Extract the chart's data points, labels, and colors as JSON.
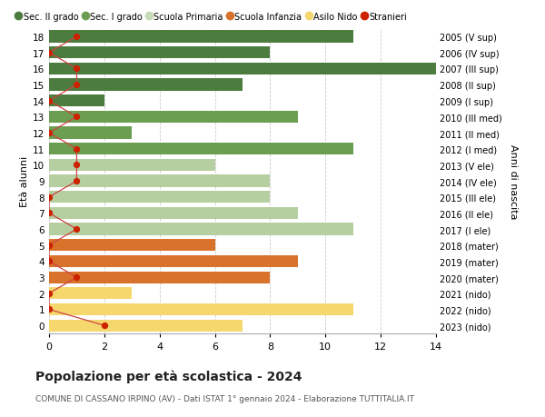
{
  "ages": [
    18,
    17,
    16,
    15,
    14,
    13,
    12,
    11,
    10,
    9,
    8,
    7,
    6,
    5,
    4,
    3,
    2,
    1,
    0
  ],
  "years": [
    "2005 (V sup)",
    "2006 (IV sup)",
    "2007 (III sup)",
    "2008 (II sup)",
    "2009 (I sup)",
    "2010 (III med)",
    "2011 (II med)",
    "2012 (I med)",
    "2013 (V ele)",
    "2014 (IV ele)",
    "2015 (III ele)",
    "2016 (II ele)",
    "2017 (I ele)",
    "2018 (mater)",
    "2019 (mater)",
    "2020 (mater)",
    "2021 (nido)",
    "2022 (nido)",
    "2023 (nido)"
  ],
  "bar_values": [
    11,
    8,
    14,
    7,
    2,
    9,
    3,
    11,
    6,
    8,
    8,
    9,
    11,
    6,
    9,
    8,
    3,
    11,
    7
  ],
  "bar_colors": [
    "#4d7c3f",
    "#4d7c3f",
    "#4d7c3f",
    "#4d7c3f",
    "#4d7c3f",
    "#6b9e50",
    "#6b9e50",
    "#6b9e50",
    "#b5cfa0",
    "#b5cfa0",
    "#b5cfa0",
    "#b5cfa0",
    "#b5cfa0",
    "#d9722a",
    "#d9722a",
    "#d9722a",
    "#f5d76e",
    "#f5d76e",
    "#f5d76e"
  ],
  "stranieri_values": [
    1,
    0,
    1,
    1,
    0,
    1,
    0,
    1,
    1,
    1,
    0,
    0,
    1,
    0,
    0,
    1,
    0,
    0,
    2
  ],
  "legend_labels": [
    "Sec. II grado",
    "Sec. I grado",
    "Scuola Primaria",
    "Scuola Infanzia",
    "Asilo Nido",
    "Stranieri"
  ],
  "legend_colors": [
    "#4d7c3f",
    "#6b9e50",
    "#c8dbb8",
    "#d9722a",
    "#f5d76e",
    "#cc2200"
  ],
  "title": "Popolazione per età scolastica - 2024",
  "subtitle": "COMUNE DI CASSANO IRPINO (AV) - Dati ISTAT 1° gennaio 2024 - Elaborazione TUTTITALIA.IT",
  "ylabel": "Età alunni",
  "ylabel2": "Anni di nascita",
  "xlim_max": 14,
  "background_color": "#ffffff",
  "grid_color": "#cccccc",
  "bar_height": 0.75,
  "stranieri_color": "#cc2200",
  "stranieri_line_color": "#cc4444"
}
